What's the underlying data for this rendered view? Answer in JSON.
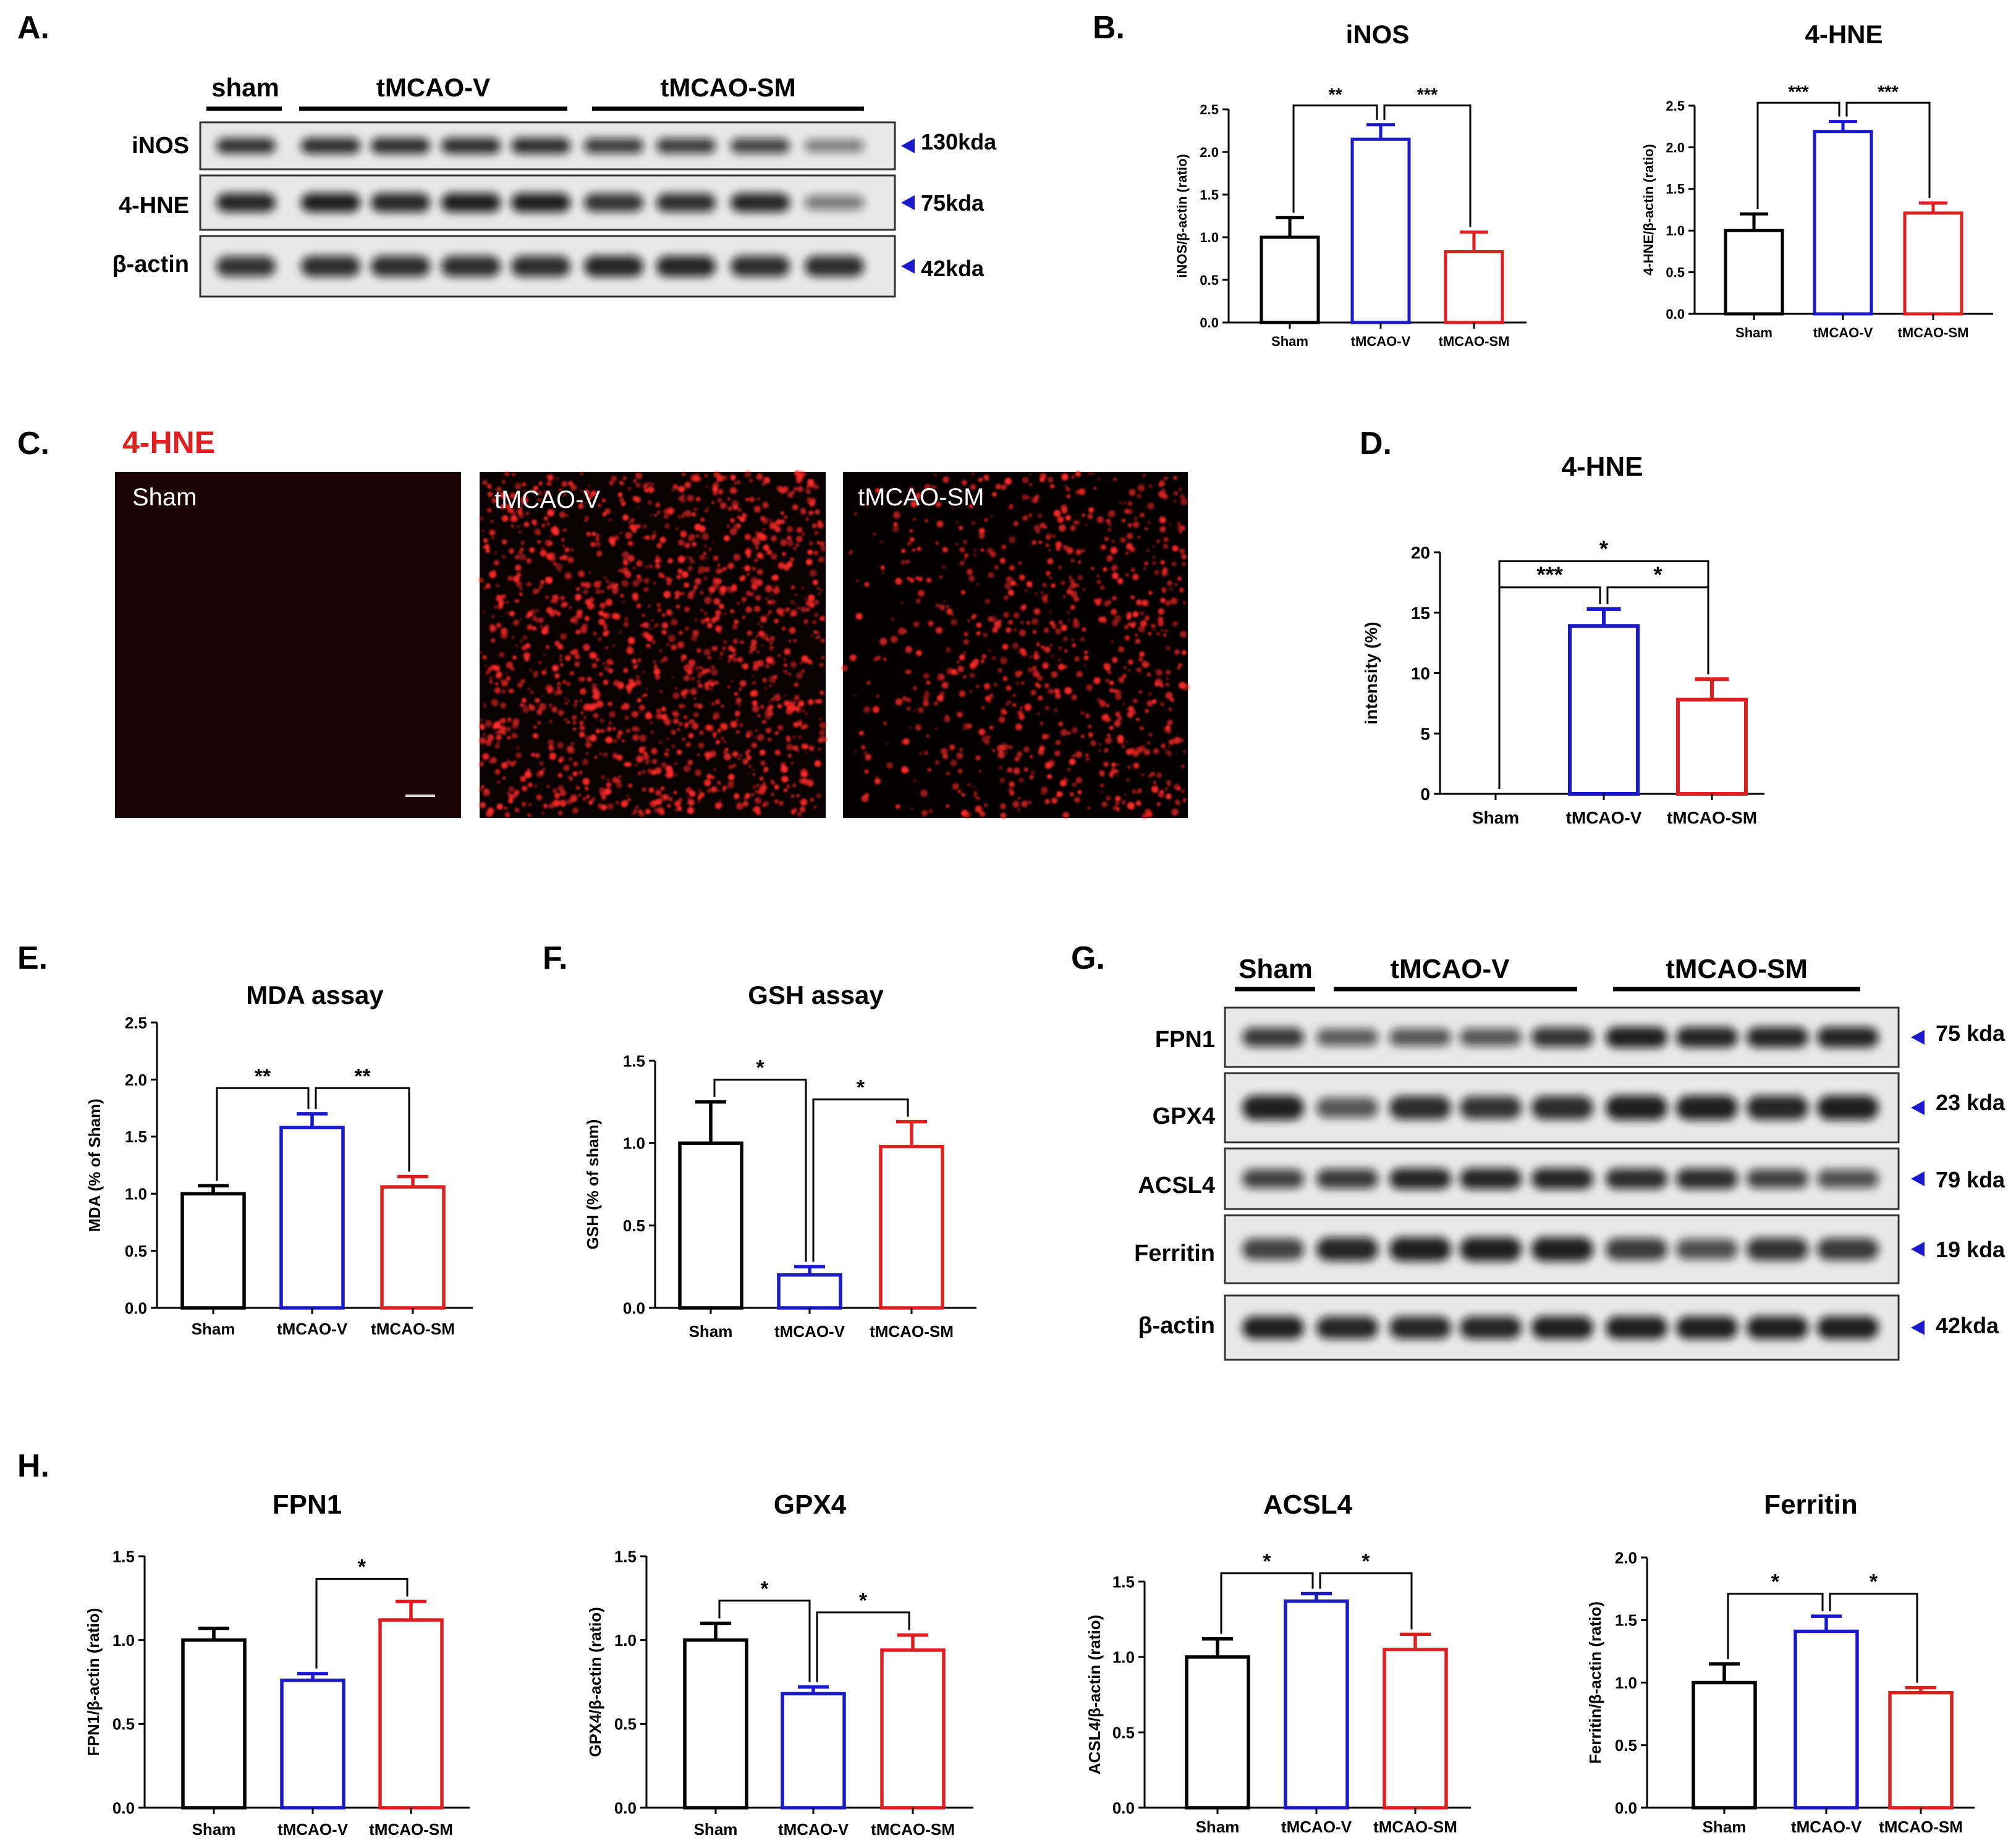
{
  "colors": {
    "sham": "#000000",
    "tmcao_v": "#1a1acc",
    "tmcao_sm": "#e02020",
    "arrow": "#1a1acc",
    "hne_title": "#e02020",
    "fluor": "#ff2a2a"
  },
  "panel_labels": [
    "A.",
    "B.",
    "C.",
    "D.",
    "E.",
    "F.",
    "G.",
    "H."
  ],
  "blot_a": {
    "groups": [
      "sham",
      "tMCAO-V",
      "tMCAO-SM"
    ],
    "rows": [
      {
        "label": "iNOS",
        "kda": "130kda"
      },
      {
        "label": "4-HNE",
        "kda": "75kda"
      },
      {
        "label": "β-actin",
        "kda": "42kda"
      }
    ]
  },
  "blot_g": {
    "groups": [
      "Sham",
      "tMCAO-V",
      "tMCAO-SM"
    ],
    "rows": [
      {
        "label": "FPN1",
        "kda": "75 kda"
      },
      {
        "label": "GPX4",
        "kda": "23 kda"
      },
      {
        "label": "ACSL4",
        "kda": "79 kda"
      },
      {
        "label": "Ferritin",
        "kda": "19 kda"
      },
      {
        "label": "β-actin",
        "kda": "42kda"
      }
    ]
  },
  "micrographs": {
    "title": "4-HNE",
    "labels": [
      "Sham",
      "tMCAO-V",
      "tMCAO-SM"
    ],
    "glyphs": {
      "arrow": "blue-left-triangle-icon",
      "scale": "scale-bar"
    }
  },
  "chart_data": [
    {
      "id": "B-iNOS",
      "type": "bar",
      "title": "iNOS",
      "ylabel": "iNOS/β-actin (ratio)",
      "xlabel": "",
      "categories": [
        "Sham",
        "tMCAO-V",
        "tMCAO-SM"
      ],
      "values": [
        1.0,
        2.15,
        0.83
      ],
      "errors": [
        0.23,
        0.17,
        0.23
      ],
      "ylim": [
        0,
        2.5
      ],
      "yticks": [
        "0.0",
        "0.5",
        "1.0",
        "1.5",
        "2.0",
        "2.5"
      ],
      "sig": [
        {
          "from": 0,
          "to": 1,
          "label": "**"
        },
        {
          "from": 1,
          "to": 2,
          "label": "***"
        }
      ]
    },
    {
      "id": "B-4HNE",
      "type": "bar",
      "title": "4-HNE",
      "ylabel": "4-HNE/β-actin (ratio)",
      "xlabel": "",
      "categories": [
        "Sham",
        "tMCAO-V",
        "tMCAO-SM"
      ],
      "values": [
        1.0,
        2.19,
        1.21
      ],
      "errors": [
        0.2,
        0.12,
        0.12
      ],
      "ylim": [
        0,
        2.5
      ],
      "yticks": [
        "0.0",
        "0.5",
        "1.0",
        "1.5",
        "2.0",
        "2.5"
      ],
      "sig": [
        {
          "from": 0,
          "to": 1,
          "label": "***"
        },
        {
          "from": 1,
          "to": 2,
          "label": "***"
        }
      ]
    },
    {
      "id": "D-4HNE",
      "type": "bar",
      "title": "4-HNE",
      "ylabel": "intensity (%)",
      "xlabel": "",
      "categories": [
        "Sham",
        "tMCAO-V",
        "tMCAO-SM"
      ],
      "values": [
        0,
        13.9,
        7.8
      ],
      "errors": [
        0,
        1.4,
        1.7
      ],
      "ylim": [
        0,
        20
      ],
      "yticks": [
        "0",
        "5",
        "10",
        "15",
        "20"
      ],
      "sig": [
        {
          "from": 0,
          "to": 1,
          "label": "***"
        },
        {
          "from": 1,
          "to": 2,
          "label": "*"
        },
        {
          "from": 0,
          "to": 2,
          "label": "*"
        }
      ]
    },
    {
      "id": "E-MDA",
      "type": "bar",
      "title": "MDA assay",
      "ylabel": "MDA (% of Sham)",
      "xlabel": "",
      "categories": [
        "Sham",
        "tMCAO-V",
        "tMCAO-SM"
      ],
      "values": [
        1.0,
        1.58,
        1.06
      ],
      "errors": [
        0.07,
        0.12,
        0.09
      ],
      "ylim": [
        0,
        2.5
      ],
      "yticks": [
        "0.0",
        "0.5",
        "1.0",
        "1.5",
        "2.0",
        "2.5"
      ],
      "sig": [
        {
          "from": 0,
          "to": 1,
          "label": "**"
        },
        {
          "from": 1,
          "to": 2,
          "label": "**"
        }
      ]
    },
    {
      "id": "F-GSH",
      "type": "bar",
      "title": "GSH assay",
      "ylabel": "GSH (% of sham)",
      "xlabel": "",
      "categories": [
        "Sham",
        "tMCAO-V",
        "tMCAO-SM"
      ],
      "values": [
        1.0,
        0.2,
        0.98
      ],
      "errors": [
        0.25,
        0.05,
        0.15
      ],
      "ylim": [
        0,
        1.5
      ],
      "yticks": [
        "0.0",
        "0.5",
        "1.0",
        "1.5"
      ],
      "sig": [
        {
          "from": 0,
          "to": 1,
          "label": "*"
        },
        {
          "from": 1,
          "to": 2,
          "label": "*"
        }
      ]
    },
    {
      "id": "H-FPN1",
      "type": "bar",
      "title": "FPN1",
      "ylabel": "FPN1/β-actin (ratio)",
      "xlabel": "",
      "categories": [
        "Sham",
        "tMCAO-V",
        "tMCAO-SM"
      ],
      "values": [
        1.0,
        0.76,
        1.12
      ],
      "errors": [
        0.07,
        0.04,
        0.11
      ],
      "ylim": [
        0,
        1.5
      ],
      "yticks": [
        "0.0",
        "0.5",
        "1.0",
        "1.5"
      ],
      "sig": [
        {
          "from": 1,
          "to": 2,
          "label": "*"
        }
      ]
    },
    {
      "id": "H-GPX4",
      "type": "bar",
      "title": "GPX4",
      "ylabel": "GPX4/β-actin (ratio)",
      "xlabel": "",
      "categories": [
        "Sham",
        "tMCAO-V",
        "tMCAO-SM"
      ],
      "values": [
        1.0,
        0.68,
        0.94
      ],
      "errors": [
        0.1,
        0.04,
        0.09
      ],
      "ylim": [
        0,
        1.5
      ],
      "yticks": [
        "0.0",
        "0.5",
        "1.0",
        "1.5"
      ],
      "sig": [
        {
          "from": 0,
          "to": 1,
          "label": "*"
        },
        {
          "from": 1,
          "to": 2,
          "label": "*"
        }
      ]
    },
    {
      "id": "H-ACSL4",
      "type": "bar",
      "title": "ACSL4",
      "ylabel": "ACSL4/β-actin (ratio)",
      "xlabel": "",
      "categories": [
        "Sham",
        "tMCAO-V",
        "tMCAO-SM"
      ],
      "values": [
        1.0,
        1.37,
        1.05
      ],
      "errors": [
        0.12,
        0.05,
        0.1
      ],
      "ylim": [
        0,
        1.5
      ],
      "yticks": [
        "0.0",
        "0.5",
        "1.0",
        "1.5"
      ],
      "sig": [
        {
          "from": 0,
          "to": 1,
          "label": "*"
        },
        {
          "from": 1,
          "to": 2,
          "label": "*"
        }
      ]
    },
    {
      "id": "H-Ferritin",
      "type": "bar",
      "title": "Ferritin",
      "ylabel": "Ferritin/β-actin (ratio)",
      "xlabel": "",
      "categories": [
        "Sham",
        "tMCAO-V",
        "tMCAO-SM"
      ],
      "values": [
        1.0,
        1.41,
        0.92
      ],
      "errors": [
        0.15,
        0.12,
        0.04
      ],
      "ylim": [
        0,
        2.0
      ],
      "yticks": [
        "0.0",
        "0.5",
        "1.0",
        "1.5",
        "2.0"
      ],
      "sig": [
        {
          "from": 0,
          "to": 1,
          "label": "*"
        },
        {
          "from": 1,
          "to": 2,
          "label": "*"
        }
      ]
    }
  ]
}
